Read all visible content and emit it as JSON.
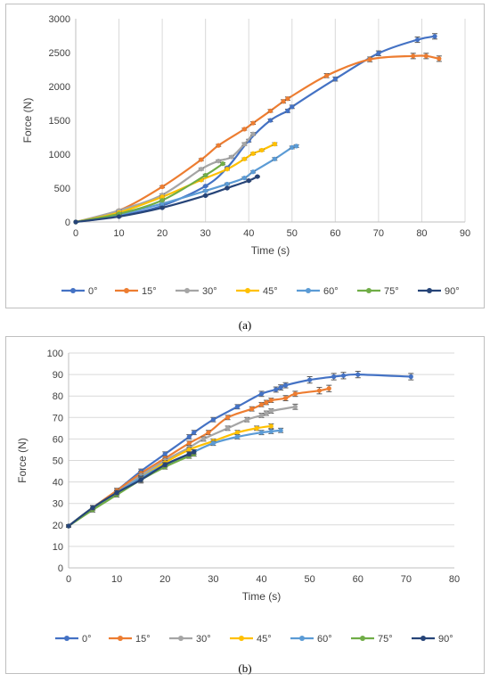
{
  "captions": {
    "a": "(a)",
    "b": "(b)"
  },
  "chart_data": [
    {
      "type": "line",
      "xlabel": "Time (s)",
      "ylabel": "Force (N)",
      "xlim": [
        0,
        90
      ],
      "ylim": [
        0,
        3000
      ],
      "xticks": [
        0,
        10,
        20,
        30,
        40,
        50,
        60,
        70,
        80,
        90
      ],
      "yticks": [
        0,
        500,
        1000,
        1500,
        2000,
        2500,
        3000
      ],
      "grid": "vertical",
      "legend": "bottom",
      "series": [
        {
          "name": "0°",
          "color": "#4472c4",
          "x": [
            0,
            10,
            20,
            30,
            35,
            40,
            45,
            49,
            50,
            60,
            70,
            79,
            83
          ],
          "y": [
            0,
            90,
            240,
            530,
            800,
            1200,
            1500,
            1640,
            1700,
            2110,
            2490,
            2690,
            2740
          ],
          "err": [
            0,
            0,
            10,
            10,
            15,
            20,
            20,
            25,
            25,
            30,
            35,
            40,
            40
          ]
        },
        {
          "name": "15°",
          "color": "#ed7d31",
          "x": [
            0,
            10,
            20,
            29,
            33,
            39,
            41,
            45,
            48,
            49,
            58,
            68,
            78,
            81,
            84
          ],
          "y": [
            0,
            170,
            520,
            920,
            1130,
            1370,
            1460,
            1640,
            1780,
            1820,
            2160,
            2400,
            2450,
            2450,
            2410
          ],
          "err": [
            0,
            10,
            15,
            15,
            15,
            15,
            20,
            20,
            25,
            25,
            30,
            35,
            40,
            40,
            40
          ]
        },
        {
          "name": "30°",
          "color": "#a5a5a5",
          "x": [
            0,
            10,
            20,
            29,
            33,
            36,
            39,
            41
          ],
          "y": [
            0,
            170,
            400,
            780,
            900,
            960,
            1150,
            1300
          ],
          "err": [
            0,
            10,
            15,
            15,
            15,
            15,
            20,
            20
          ]
        },
        {
          "name": "45°",
          "color": "#ffc000",
          "x": [
            0,
            10,
            20,
            29,
            35,
            39,
            41,
            43,
            46
          ],
          "y": [
            0,
            140,
            370,
            620,
            780,
            930,
            1010,
            1060,
            1150
          ],
          "err": [
            0,
            10,
            15,
            15,
            15,
            15,
            15,
            15,
            20
          ]
        },
        {
          "name": "60°",
          "color": "#5b9bd5",
          "x": [
            0,
            10,
            20,
            30,
            35,
            39,
            41,
            46,
            50,
            51
          ],
          "y": [
            0,
            110,
            270,
            460,
            560,
            650,
            740,
            930,
            1100,
            1120
          ],
          "err": [
            0,
            10,
            10,
            15,
            15,
            15,
            15,
            20,
            20,
            20
          ]
        },
        {
          "name": "75°",
          "color": "#70ad47",
          "x": [
            0,
            10,
            20,
            30,
            34
          ],
          "y": [
            0,
            120,
            320,
            690,
            860
          ],
          "err": [
            0,
            10,
            10,
            15,
            15
          ]
        },
        {
          "name": "90°",
          "color": "#264478",
          "x": [
            0,
            10,
            20,
            30,
            35,
            40,
            42
          ],
          "y": [
            0,
            80,
            210,
            390,
            500,
            610,
            670
          ],
          "err": [
            0,
            10,
            10,
            10,
            10,
            10,
            10
          ]
        }
      ]
    },
    {
      "type": "line",
      "xlabel": "Time (s)",
      "ylabel": "Force (N)",
      "xlim": [
        0,
        80
      ],
      "ylim": [
        0,
        100
      ],
      "xticks": [
        0,
        10,
        20,
        30,
        40,
        50,
        60,
        70,
        80
      ],
      "yticks": [
        0,
        10,
        20,
        30,
        40,
        50,
        60,
        70,
        80,
        90,
        100
      ],
      "grid": "horizontal",
      "legend": "bottom",
      "series": [
        {
          "name": "0°",
          "color": "#4472c4",
          "x": [
            0,
            5,
            10,
            15,
            20,
            25,
            26,
            30,
            35,
            40,
            43,
            44,
            45,
            50,
            55,
            57,
            60,
            71
          ],
          "y": [
            19.5,
            28,
            36,
            45,
            53,
            61,
            63,
            69,
            75,
            81,
            83,
            84,
            85,
            87.5,
            89,
            89.5,
            90,
            89
          ],
          "err": [
            0.5,
            1,
            1,
            1,
            1,
            1,
            1,
            1,
            1,
            1.2,
            1.2,
            1.2,
            1.2,
            1.5,
            1.5,
            1.5,
            1.5,
            1.5
          ]
        },
        {
          "name": "15°",
          "color": "#ed7d31",
          "x": [
            0,
            5,
            10,
            15,
            20,
            25,
            29,
            33,
            38,
            40,
            41,
            42,
            45,
            47,
            52,
            54
          ],
          "y": [
            19.5,
            28,
            36,
            44,
            51,
            58,
            63,
            70,
            74,
            76,
            77,
            78,
            79,
            81,
            82.5,
            83.5
          ],
          "err": [
            0.5,
            1,
            1,
            1,
            1,
            1,
            1,
            1,
            1,
            1,
            1,
            1,
            1.2,
            1.2,
            1.5,
            1.5
          ]
        },
        {
          "name": "30°",
          "color": "#a5a5a5",
          "x": [
            0,
            5,
            10,
            15,
            20,
            25,
            28,
            33,
            37,
            40,
            41,
            42,
            47
          ],
          "y": [
            19.5,
            28,
            35,
            43,
            50,
            56,
            60,
            65,
            69,
            71,
            72,
            73,
            75
          ],
          "err": [
            0.5,
            1,
            1,
            1,
            1,
            1,
            1,
            1,
            1,
            1,
            1,
            1,
            1.2
          ]
        },
        {
          "name": "45°",
          "color": "#ffc000",
          "x": [
            0,
            5,
            10,
            15,
            20,
            25,
            30,
            35,
            39,
            42
          ],
          "y": [
            19.5,
            28,
            35,
            42,
            49,
            55,
            59,
            63,
            65,
            66
          ],
          "err": [
            0.5,
            1,
            1,
            1,
            1,
            1,
            1,
            1,
            1,
            1
          ]
        },
        {
          "name": "60°",
          "color": "#5b9bd5",
          "x": [
            0,
            5,
            10,
            15,
            20,
            25,
            30,
            35,
            40,
            42,
            44
          ],
          "y": [
            19.5,
            28,
            35,
            42,
            48,
            53,
            58,
            61,
            63,
            63.5,
            64
          ],
          "err": [
            0.5,
            1,
            1,
            1,
            1,
            1,
            1,
            1,
            1,
            1,
            1
          ]
        },
        {
          "name": "75°",
          "color": "#70ad47",
          "x": [
            0,
            5,
            10,
            15,
            20,
            25,
            26
          ],
          "y": [
            19.5,
            27,
            34,
            41,
            47,
            52,
            53
          ],
          "err": [
            0.5,
            1,
            1,
            1,
            1,
            1,
            1
          ]
        },
        {
          "name": "90°",
          "color": "#264478",
          "x": [
            0,
            5,
            10,
            15,
            20,
            25,
            26
          ],
          "y": [
            19.5,
            28,
            35,
            41,
            48,
            53,
            54
          ],
          "err": [
            0.5,
            1,
            1,
            1.5,
            1,
            1,
            1
          ]
        }
      ]
    }
  ]
}
